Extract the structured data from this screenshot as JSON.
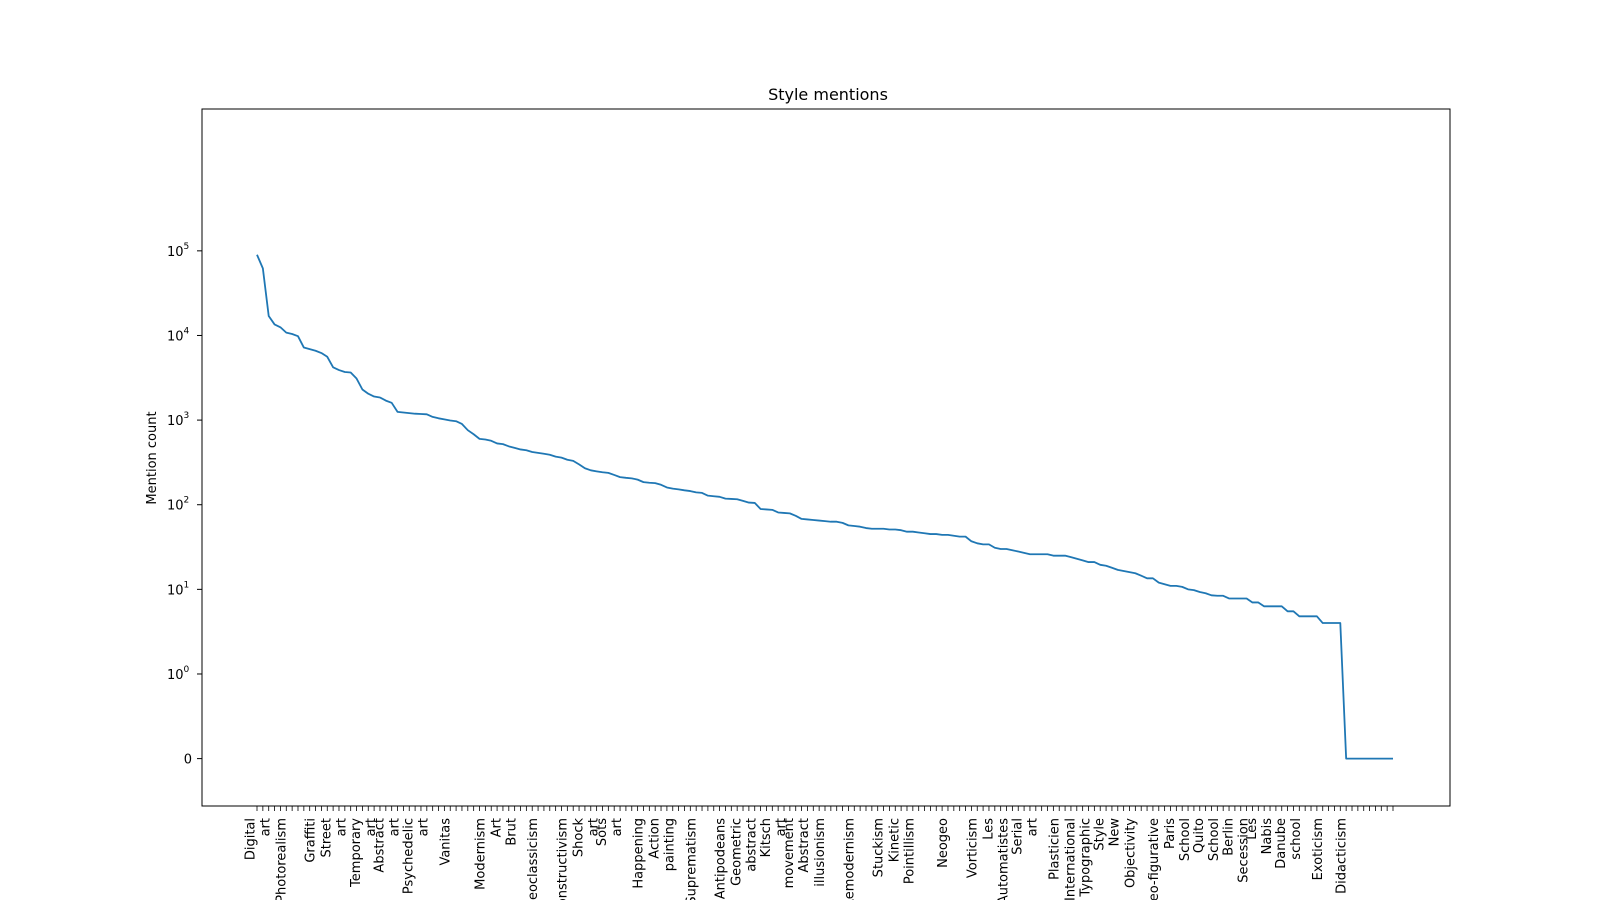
{
  "chart_data": {
    "type": "line",
    "title": "Style mentions",
    "xlabel": "",
    "ylabel": "Mention count",
    "yscale": "symlog",
    "ylim": [
      0,
      150000
    ],
    "grid": false,
    "legend": "none",
    "line_color": "#1f77b4",
    "y_tick_labels": [
      {
        "value": 0,
        "base": "0",
        "exp": ""
      },
      {
        "value": 1,
        "base": "10",
        "exp": "0"
      },
      {
        "value": 10,
        "base": "10",
        "exp": "1"
      },
      {
        "value": 100,
        "base": "10",
        "exp": "2"
      },
      {
        "value": 1000,
        "base": "10",
        "exp": "3"
      },
      {
        "value": 10000,
        "base": "10",
        "exp": "4"
      },
      {
        "value": 100000,
        "base": "10",
        "exp": "5"
      }
    ],
    "x_tick_labels": [
      {
        "index": 0,
        "lines": [
          "Digital",
          "art"
        ]
      },
      {
        "index": 4,
        "lines": [
          "Photorealism"
        ]
      },
      {
        "index": 9,
        "lines": [
          "Graffiti"
        ]
      },
      {
        "index": 13,
        "lines": [
          "Street",
          "art"
        ]
      },
      {
        "index": 18,
        "lines": [
          "Temporary",
          "art"
        ]
      },
      {
        "index": 22,
        "lines": [
          "Abstract",
          "art"
        ]
      },
      {
        "index": 27,
        "lines": [
          "Psychedelic",
          "art"
        ]
      },
      {
        "index": 32,
        "lines": [
          "Vanitas"
        ]
      },
      {
        "index": 38,
        "lines": [
          "Modernism"
        ]
      },
      {
        "index": 42,
        "lines": [
          "Art",
          "Brut"
        ]
      },
      {
        "index": 47,
        "lines": [
          "Neoclassicism"
        ]
      },
      {
        "index": 52,
        "lines": [
          "Constructivism"
        ]
      },
      {
        "index": 56,
        "lines": [
          "Shock",
          "art"
        ]
      },
      {
        "index": 60,
        "lines": [
          "Sots",
          "art"
        ]
      },
      {
        "index": 65,
        "lines": [
          "Happening"
        ]
      },
      {
        "index": 69,
        "lines": [
          "Action",
          "painting"
        ]
      },
      {
        "index": 74,
        "lines": [
          "Suprematism"
        ]
      },
      {
        "index": 79,
        "lines": [
          "Antipodeans"
        ]
      },
      {
        "index": 83,
        "lines": [
          "Geometric",
          "abstract"
        ]
      },
      {
        "index": 88,
        "lines": [
          "Kitsch",
          "art"
        ]
      },
      {
        "index": 92,
        "lines": [
          "movement",
          "Abstract"
        ]
      },
      {
        "index": 96,
        "lines": [
          "illusionism"
        ]
      },
      {
        "index": 101,
        "lines": [
          "Remodernism"
        ]
      },
      {
        "index": 106,
        "lines": [
          "Stuckism"
        ]
      },
      {
        "index": 110,
        "lines": [
          "Kinetic",
          "Pointillism"
        ]
      },
      {
        "index": 117,
        "lines": [
          "Neogeo"
        ]
      },
      {
        "index": 122,
        "lines": [
          "Vorticism"
        ]
      },
      {
        "index": 126,
        "lines": [
          "Les",
          "Automatistes"
        ]
      },
      {
        "index": 131,
        "lines": [
          "Serial",
          "art"
        ]
      },
      {
        "index": 136,
        "lines": [
          "Plasticien"
        ]
      },
      {
        "index": 140,
        "lines": [
          "International",
          "Typographic"
        ]
      },
      {
        "index": 145,
        "lines": [
          "Style",
          "New"
        ]
      },
      {
        "index": 149,
        "lines": [
          "Objectivity"
        ]
      },
      {
        "index": 153,
        "lines": [
          "Neo-figurative"
        ]
      },
      {
        "index": 157,
        "lines": [
          "Paris",
          "School"
        ]
      },
      {
        "index": 162,
        "lines": [
          "Quito",
          "School"
        ]
      },
      {
        "index": 167,
        "lines": [
          "Berlin",
          "Secession"
        ]
      },
      {
        "index": 171,
        "lines": [
          "Les",
          "Nabis"
        ]
      },
      {
        "index": 176,
        "lines": [
          "Danube",
          "school"
        ]
      },
      {
        "index": 181,
        "lines": [
          "Exoticism"
        ]
      },
      {
        "index": 185,
        "lines": [
          "Didacticism"
        ]
      }
    ],
    "series": [
      {
        "name": "",
        "values": [
          90000,
          62000,
          17000,
          13500,
          12500,
          10800,
          10400,
          9800,
          7200,
          6900,
          6600,
          6200,
          5600,
          4200,
          3900,
          3700,
          3650,
          3100,
          2300,
          2050,
          1900,
          1850,
          1700,
          1600,
          1250,
          1230,
          1210,
          1190,
          1180,
          1170,
          1090,
          1050,
          1020,
          990,
          970,
          900,
          760,
          680,
          600,
          590,
          570,
          530,
          520,
          490,
          470,
          450,
          440,
          420,
          410,
          400,
          390,
          370,
          360,
          340,
          330,
          300,
          270,
          255,
          248,
          242,
          238,
          225,
          212,
          208,
          205,
          198,
          185,
          182,
          180,
          172,
          160,
          155,
          152,
          148,
          145,
          140,
          138,
          128,
          126,
          124,
          118,
          117,
          116,
          111,
          106,
          105,
          89,
          88,
          87,
          81,
          80,
          79,
          74,
          68,
          67,
          66,
          65,
          64,
          63,
          63,
          61,
          57,
          56,
          55,
          53,
          52,
          52,
          52,
          51,
          51,
          50,
          48,
          48,
          47,
          46,
          45,
          45,
          44,
          44,
          43,
          42,
          42,
          37,
          35,
          34,
          34,
          31,
          30,
          30,
          29,
          28,
          27,
          26,
          26,
          26,
          26,
          25,
          25,
          25,
          24,
          23,
          22,
          21,
          21,
          19.5,
          19,
          18,
          17,
          16.5,
          16,
          15.5,
          14.5,
          13.5,
          13.5,
          12,
          11.5,
          11,
          11,
          10.7,
          10,
          9.8,
          9.3,
          9,
          8.5,
          8.4,
          8.4,
          7.8,
          7.8,
          7.8,
          7.8,
          7,
          7,
          6.3,
          6.3,
          6.3,
          6.3,
          5.5,
          5.5,
          4.8,
          4.8,
          4.8,
          4.8,
          4,
          4,
          4,
          4,
          0,
          0,
          0,
          0,
          0,
          0,
          0,
          0,
          0
        ]
      }
    ]
  }
}
